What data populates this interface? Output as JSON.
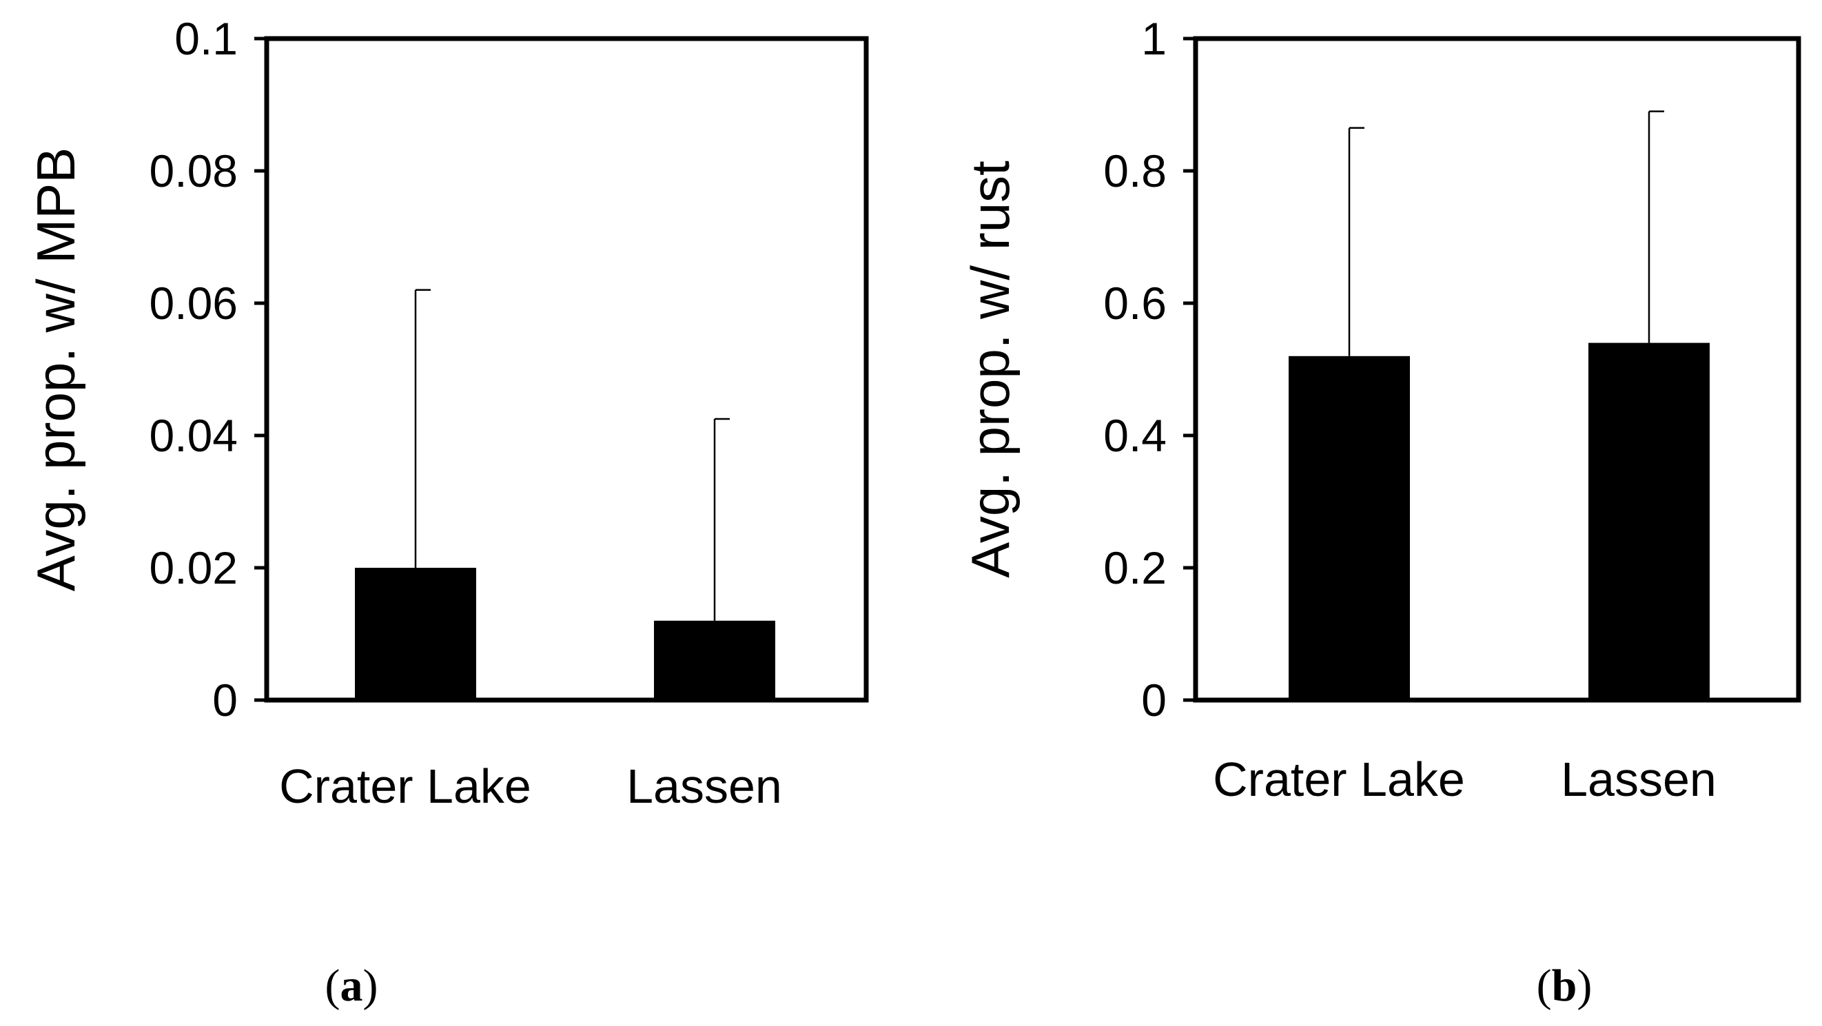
{
  "chart_data": [
    {
      "type": "bar",
      "panel_label": {
        "open": "(",
        "letter": "a",
        "close": ")"
      },
      "categories": [
        "Crater Lake",
        "Lassen"
      ],
      "values": [
        0.02,
        0.012
      ],
      "error_upper": [
        0.062,
        0.0425
      ],
      "ylabel": "Avg. prop. w/ MPB",
      "ylim": [
        0,
        0.1
      ],
      "yticks": [
        "0",
        "0.02",
        "0.04",
        "0.06",
        "0.08",
        "0.1"
      ],
      "grid": false,
      "bar_color": "#000000"
    },
    {
      "type": "bar",
      "panel_label": {
        "open": "(",
        "letter": "b",
        "close": ")"
      },
      "categories": [
        "Crater Lake",
        "Lassen"
      ],
      "values": [
        0.52,
        0.54
      ],
      "error_upper": [
        0.865,
        0.89
      ],
      "ylabel": "Avg. prop. w/ rust",
      "ylim": [
        0,
        1
      ],
      "yticks": [
        "0",
        "0.2",
        "0.4",
        "0.6",
        "0.8",
        "1"
      ],
      "grid": false,
      "bar_color": "#000000"
    }
  ]
}
